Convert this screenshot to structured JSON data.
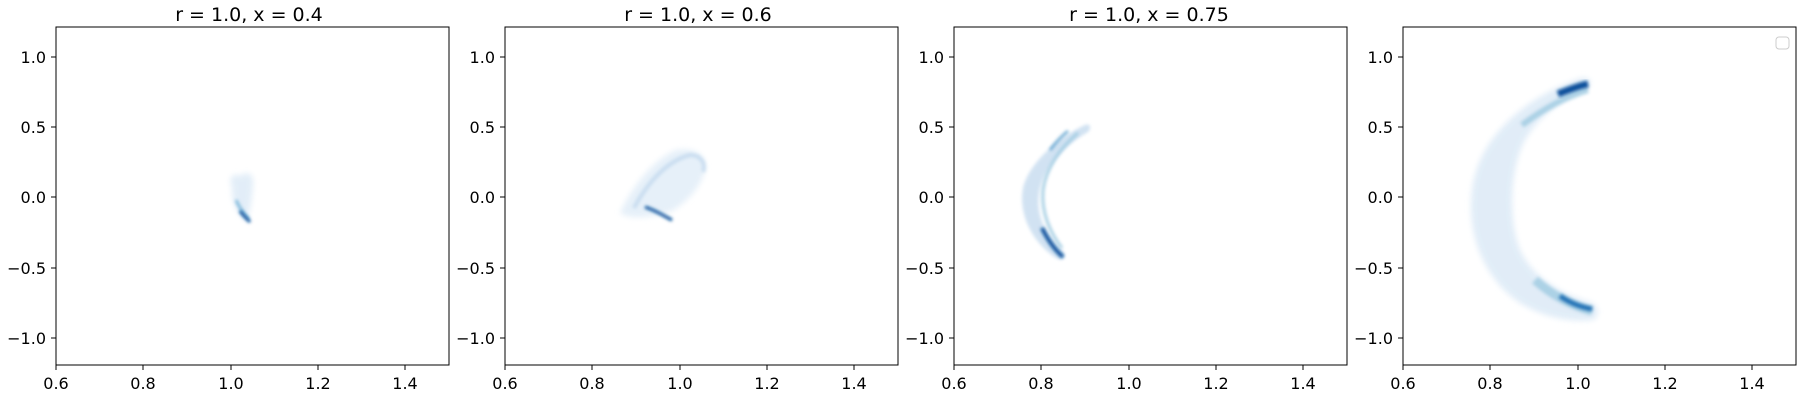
{
  "figure": {
    "panel_count": 4,
    "colormap": "Blues",
    "colors": {
      "background": "#ffffff",
      "axes": "#000000",
      "density_light": "#deebf7",
      "density_mid": "#6baed6",
      "density_dark": "#08519c"
    }
  },
  "chart_data": [
    {
      "type": "heatmap",
      "title": "r = 1.0, x = 0.4",
      "xlim": [
        0.6,
        1.5
      ],
      "ylim": [
        -1.2,
        1.2
      ],
      "xticks": [
        "0.6",
        "0.8",
        "1.0",
        "1.2",
        "1.4"
      ],
      "yticks": [
        "1.0",
        "0.5",
        "0.0",
        "−0.5",
        "−1.0"
      ],
      "grid": false,
      "density_regions": [
        {
          "level": 0.15,
          "x_range": [
            1.0,
            1.06
          ],
          "y_range": [
            -0.18,
            0.05
          ],
          "note_shape": "small cluster"
        },
        {
          "level": 0.9,
          "x_range": [
            1.02,
            1.05
          ],
          "y_range": [
            -0.18,
            -0.12
          ],
          "note_shape": "dense stroke"
        }
      ]
    },
    {
      "type": "heatmap",
      "title": "r = 1.0, x = 0.6",
      "xlim": [
        0.6,
        1.5
      ],
      "ylim": [
        -1.2,
        1.2
      ],
      "xticks": [
        "0.6",
        "0.8",
        "1.0",
        "1.2",
        "1.4"
      ],
      "yticks": [
        "1.0",
        "0.5",
        "0.0",
        "−0.5",
        "−1.0"
      ],
      "grid": false,
      "density_regions": [
        {
          "level": 0.1,
          "x_range": [
            0.87,
            1.07
          ],
          "y_range": [
            -0.15,
            0.35
          ],
          "note_shape": "faint lobe"
        },
        {
          "level": 0.85,
          "x_range": [
            0.92,
            0.98
          ],
          "y_range": [
            -0.18,
            -0.05
          ],
          "note_shape": "dense streak"
        }
      ]
    },
    {
      "type": "heatmap",
      "title": "r = 1.0, x = 0.75",
      "xlim": [
        0.6,
        1.5
      ],
      "ylim": [
        -1.2,
        1.2
      ],
      "xticks": [
        "0.6",
        "0.8",
        "1.0",
        "1.2",
        "1.4"
      ],
      "yticks": [
        "1.0",
        "0.5",
        "0.0",
        "−0.5",
        "−1.0"
      ],
      "grid": false,
      "density_regions": [
        {
          "level": 0.2,
          "x_range": [
            0.76,
            0.92
          ],
          "y_range": [
            -0.42,
            0.52
          ],
          "note_shape": "crescent"
        },
        {
          "level": 0.9,
          "x_range": [
            0.8,
            0.85
          ],
          "y_range": [
            -0.42,
            -0.2
          ],
          "note_shape": "dense lower arm"
        }
      ]
    },
    {
      "type": "heatmap",
      "title": "",
      "xlim": [
        0.6,
        1.5
      ],
      "ylim": [
        -1.2,
        1.2
      ],
      "xticks": [
        "0.6",
        "0.8",
        "1.0",
        "1.2",
        "1.4"
      ],
      "yticks": [
        "1.0",
        "0.5",
        "0.0",
        "−0.5",
        "−1.0"
      ],
      "grid": false,
      "legend": "top-right, empty",
      "density_regions": [
        {
          "level": 0.1,
          "x_range": [
            0.76,
            1.09
          ],
          "y_range": [
            -0.88,
            0.85
          ],
          "note_shape": "large crescent"
        },
        {
          "level": 0.95,
          "x_range": [
            0.98,
            1.08
          ],
          "y_range": [
            0.7,
            0.82
          ],
          "note_shape": "dense upper tip"
        },
        {
          "level": 0.95,
          "x_range": [
            0.9,
            1.08
          ],
          "y_range": [
            -0.82,
            -0.55
          ],
          "note_shape": "dense lower arm"
        }
      ]
    }
  ]
}
